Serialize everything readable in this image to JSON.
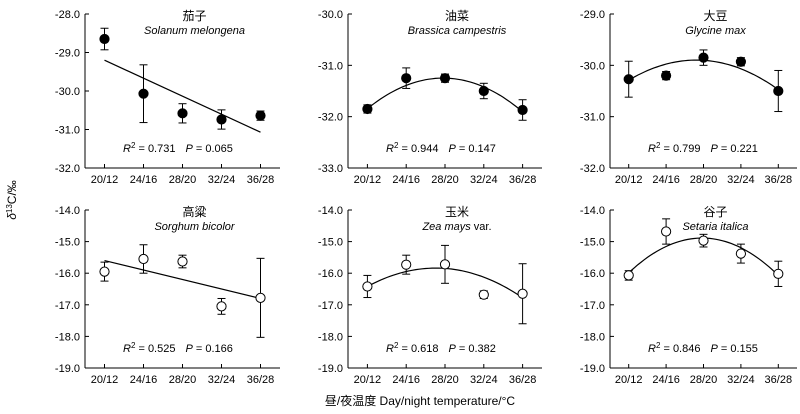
{
  "figure": {
    "ylabel_symbol": "δ",
    "ylabel_sup": "13",
    "ylabel_rest": "C/‰",
    "xlabel": "昼/夜温度 Day/night temperature/°C"
  },
  "chart_data": [
    {
      "type": "scatter",
      "title": "茄子",
      "subtitle": "Solanum melongena",
      "marker": "filled",
      "fit": "linear",
      "categories": [
        "20/12",
        "24/16",
        "28/20",
        "32/24",
        "36/28"
      ],
      "values": [
        -28.65,
        -30.07,
        -30.58,
        -30.74,
        -30.64
      ],
      "errors": [
        0.28,
        0.75,
        0.25,
        0.25,
        0.12
      ],
      "fit_values": [
        -29.2,
        -29.67,
        -30.13,
        -30.6,
        -31.07
      ],
      "ylim": [
        -32.0,
        -28.0
      ],
      "yticks": [
        "-28.0",
        "-29.0",
        "-30.0",
        "-31.0",
        "-32.0"
      ],
      "r2": "0.731",
      "p": "0.065"
    },
    {
      "type": "scatter",
      "title": "油菜",
      "subtitle": "Brassica campestris",
      "marker": "filled",
      "fit": "quadratic",
      "categories": [
        "20/12",
        "24/16",
        "28/20",
        "32/24",
        "36/28"
      ],
      "values": [
        -31.85,
        -31.25,
        -31.25,
        -31.5,
        -31.87
      ],
      "errors": [
        0.08,
        0.2,
        0.08,
        0.15,
        0.2
      ],
      "fit_values": [
        -31.85,
        -31.38,
        -31.25,
        -31.43,
        -31.9
      ],
      "ylim": [
        -33.0,
        -30.0
      ],
      "yticks": [
        "-30.0",
        "-31.0",
        "-32.0",
        "-33.0"
      ],
      "r2": "0.944",
      "p": "0.147"
    },
    {
      "type": "scatter",
      "title": "大豆",
      "subtitle": "Glycine max",
      "marker": "filled",
      "fit": "quadratic",
      "categories": [
        "20/12",
        "24/16",
        "28/20",
        "32/24",
        "36/28"
      ],
      "values": [
        -30.27,
        -30.2,
        -29.85,
        -29.93,
        -30.5
      ],
      "errors": [
        0.35,
        0.08,
        0.15,
        0.08,
        0.4
      ],
      "fit_values": [
        -30.27,
        -30.01,
        -29.92,
        -30.01,
        -30.5
      ],
      "ylim": [
        -32.0,
        -29.0
      ],
      "yticks": [
        "-29.0",
        "-30.0",
        "-31.0",
        "-32.0"
      ],
      "r2": "0.799",
      "p": "0.221"
    },
    {
      "type": "scatter",
      "title": "高粱",
      "subtitle": "Sorghum bicolor",
      "marker": "open",
      "fit": "linear",
      "categories": [
        "20/12",
        "24/16",
        "28/20",
        "32/24",
        "36/28"
      ],
      "values": [
        -15.95,
        -15.55,
        -15.63,
        -17.05,
        -16.78
      ],
      "errors": [
        0.3,
        0.45,
        0.2,
        0.25,
        1.25
      ],
      "fit_values": [
        -15.6,
        -15.9,
        -16.2,
        -16.5,
        -16.8
      ],
      "ylim": [
        -19.0,
        -14.0
      ],
      "yticks": [
        "-14.0",
        "-15.0",
        "-16.0",
        "-17.0",
        "-18.0",
        "-19.0"
      ],
      "r2": "0.525",
      "p": "0.166"
    },
    {
      "type": "scatter",
      "title": "玉米",
      "subtitle": "Zea mays",
      "subtitle_suffix": "var.",
      "marker": "open",
      "fit": "quadratic",
      "categories": [
        "20/12",
        "24/16",
        "28/20",
        "32/24",
        "36/28"
      ],
      "values": [
        -16.42,
        -15.73,
        -15.72,
        -16.68,
        -16.65
      ],
      "errors": [
        0.35,
        0.3,
        0.6,
        0.12,
        0.95
      ],
      "fit_values": [
        -16.42,
        -15.95,
        -15.85,
        -16.12,
        -16.78
      ],
      "ylim": [
        -19.0,
        -14.0
      ],
      "yticks": [
        "-14.0",
        "-15.0",
        "-16.0",
        "-17.0",
        "-18.0",
        "-19.0"
      ],
      "r2": "0.618",
      "p": "0.382"
    },
    {
      "type": "scatter",
      "title": "谷子",
      "subtitle": "Setaria italica",
      "marker": "open",
      "fit": "quadratic",
      "categories": [
        "20/12",
        "24/16",
        "28/20",
        "32/24",
        "36/28"
      ],
      "values": [
        -16.07,
        -14.68,
        -14.97,
        -15.38,
        -16.02
      ],
      "errors": [
        0.15,
        0.4,
        0.2,
        0.3,
        0.4
      ],
      "fit_values": [
        -16.05,
        -15.05,
        -14.85,
        -15.35,
        -16.0
      ],
      "ylim": [
        -19.0,
        -14.0
      ],
      "yticks": [
        "-14.0",
        "-15.0",
        "-16.0",
        "-17.0",
        "-18.0",
        "-19.0"
      ],
      "r2": "0.846",
      "p": "0.155"
    }
  ]
}
